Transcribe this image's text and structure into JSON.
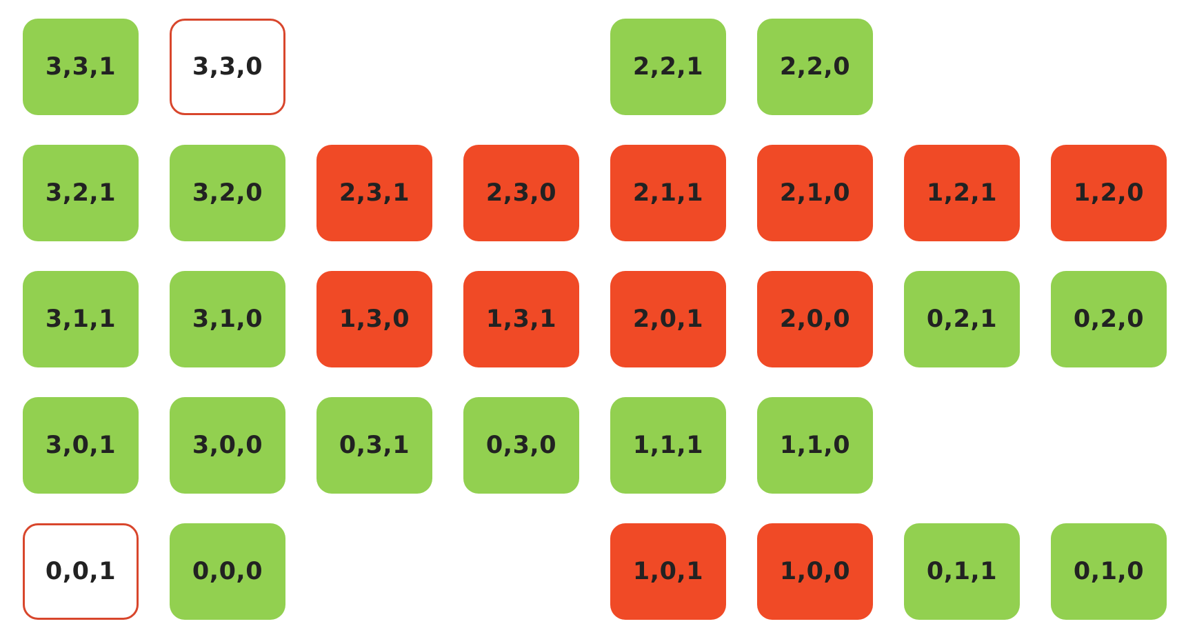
{
  "nodes": [
    {
      "label": "3,3,1",
      "status": "safe"
    },
    {
      "label": "3,3,0",
      "status": "terminal"
    },
    {
      "label": "2,2,1",
      "status": "safe"
    },
    {
      "label": "2,2,0",
      "status": "safe"
    },
    {
      "label": "3,2,1",
      "status": "safe"
    },
    {
      "label": "3,2,0",
      "status": "safe"
    },
    {
      "label": "2,3,1",
      "status": "unsafe"
    },
    {
      "label": "2,3,0",
      "status": "unsafe"
    },
    {
      "label": "2,1,1",
      "status": "unsafe"
    },
    {
      "label": "2,1,0",
      "status": "unsafe"
    },
    {
      "label": "1,2,1",
      "status": "unsafe"
    },
    {
      "label": "1,2,0",
      "status": "unsafe"
    },
    {
      "label": "3,1,1",
      "status": "safe"
    },
    {
      "label": "3,1,0",
      "status": "safe"
    },
    {
      "label": "1,3,0",
      "status": "unsafe"
    },
    {
      "label": "1,3,1",
      "status": "unsafe"
    },
    {
      "label": "2,0,1",
      "status": "unsafe"
    },
    {
      "label": "2,0,0",
      "status": "unsafe"
    },
    {
      "label": "0,2,1",
      "status": "safe"
    },
    {
      "label": "0,2,0",
      "status": "safe"
    },
    {
      "label": "3,0,1",
      "status": "safe"
    },
    {
      "label": "3,0,0",
      "status": "safe"
    },
    {
      "label": "0,3,1",
      "status": "safe"
    },
    {
      "label": "0,3,0",
      "status": "safe"
    },
    {
      "label": "1,1,1",
      "status": "safe"
    },
    {
      "label": "1,1,0",
      "status": "safe"
    },
    {
      "label": "0,0,1",
      "status": "terminal"
    },
    {
      "label": "0,0,0",
      "status": "safe"
    },
    {
      "label": "1,0,1",
      "status": "unsafe"
    },
    {
      "label": "1,0,0",
      "status": "unsafe"
    },
    {
      "label": "0,1,1",
      "status": "safe"
    },
    {
      "label": "0,1,0",
      "status": "safe"
    }
  ],
  "colors": {
    "safe": "#92d050",
    "unsafe": "#f04a26",
    "terminal_border": "#d8462c"
  }
}
